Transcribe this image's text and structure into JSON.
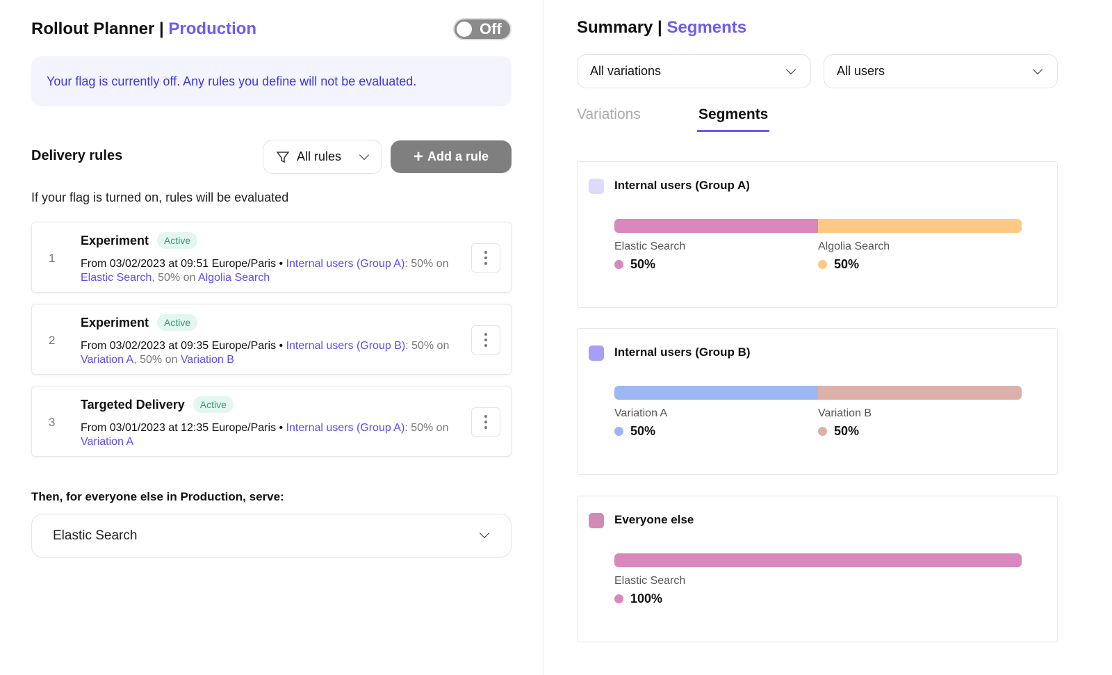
{
  "left": {
    "title": "Rollout Planner |",
    "env": "Production",
    "toggle": "Off",
    "banner": "Your flag is currently off. Any rules you define will not be evaluated.",
    "section": "Delivery rules",
    "filter": "All rules",
    "add": "Add a rule",
    "subtitle": "If your flag is turned on, rules will be evaluated",
    "rules": [
      {
        "num": "1",
        "type": "Experiment",
        "status": "Active",
        "desc": [
          {
            "t": "From 03/02/2023 at 09:51 Europe/Paris • ",
            "k": "dk"
          },
          {
            "t": "Internal users (Group A)",
            "k": "a"
          },
          {
            "t": ": 50% on ",
            "k": ""
          },
          {
            "t": "Elastic Search",
            "k": "a"
          },
          {
            "t": ", 50% on ",
            "k": ""
          },
          {
            "t": "Algolia Search",
            "k": "a"
          }
        ]
      },
      {
        "num": "2",
        "type": "Experiment",
        "status": "Active",
        "desc": [
          {
            "t": "From 03/02/2023 at 09:35 Europe/Paris • ",
            "k": "dk"
          },
          {
            "t": "Internal users (Group B)",
            "k": "a"
          },
          {
            "t": ": 50% on ",
            "k": ""
          },
          {
            "t": "Variation A",
            "k": "a"
          },
          {
            "t": ", 50% on ",
            "k": ""
          },
          {
            "t": "Variation B",
            "k": "a"
          }
        ]
      },
      {
        "num": "3",
        "type": "Targeted Delivery",
        "status": "Active",
        "desc": [
          {
            "t": "From 03/01/2023 at 12:35 Europe/Paris • ",
            "k": "dk"
          },
          {
            "t": "Internal users (Group A)",
            "k": "a"
          },
          {
            "t": ": 50% on ",
            "k": ""
          },
          {
            "t": "Variation A",
            "k": "a"
          }
        ]
      }
    ],
    "then": "Then, for everyone else in Production, serve:",
    "serve": "Elastic Search"
  },
  "right": {
    "title": "Summary |",
    "accent": "Segments",
    "sel1": "All variations",
    "sel2": "All users",
    "tabs": [
      "Variations",
      "Segments"
    ],
    "cards": [
      {
        "name": "Internal users (Group A)",
        "color": "#dcdafd",
        "parts": [
          {
            "label": "Elastic Search",
            "pct": 50,
            "pct_label": "50%",
            "color": "#d987bd"
          },
          {
            "label": "Algolia Search",
            "pct": 50,
            "pct_label": "50%",
            "color": "#ffc985"
          }
        ]
      },
      {
        "name": "Internal users (Group B)",
        "color": "#a5a0f5",
        "parts": [
          {
            "label": "Variation A",
            "pct": 50,
            "pct_label": "50%",
            "color": "#9db7f5"
          },
          {
            "label": "Variation B",
            "pct": 50,
            "pct_label": "50%",
            "color": "#dcb1a9"
          }
        ]
      },
      {
        "name": "Everyone else",
        "color": "#d08bb5",
        "parts": [
          {
            "label": "Elastic Search",
            "pct": 100,
            "pct_label": "100%",
            "color": "#d987bd"
          }
        ]
      }
    ]
  }
}
